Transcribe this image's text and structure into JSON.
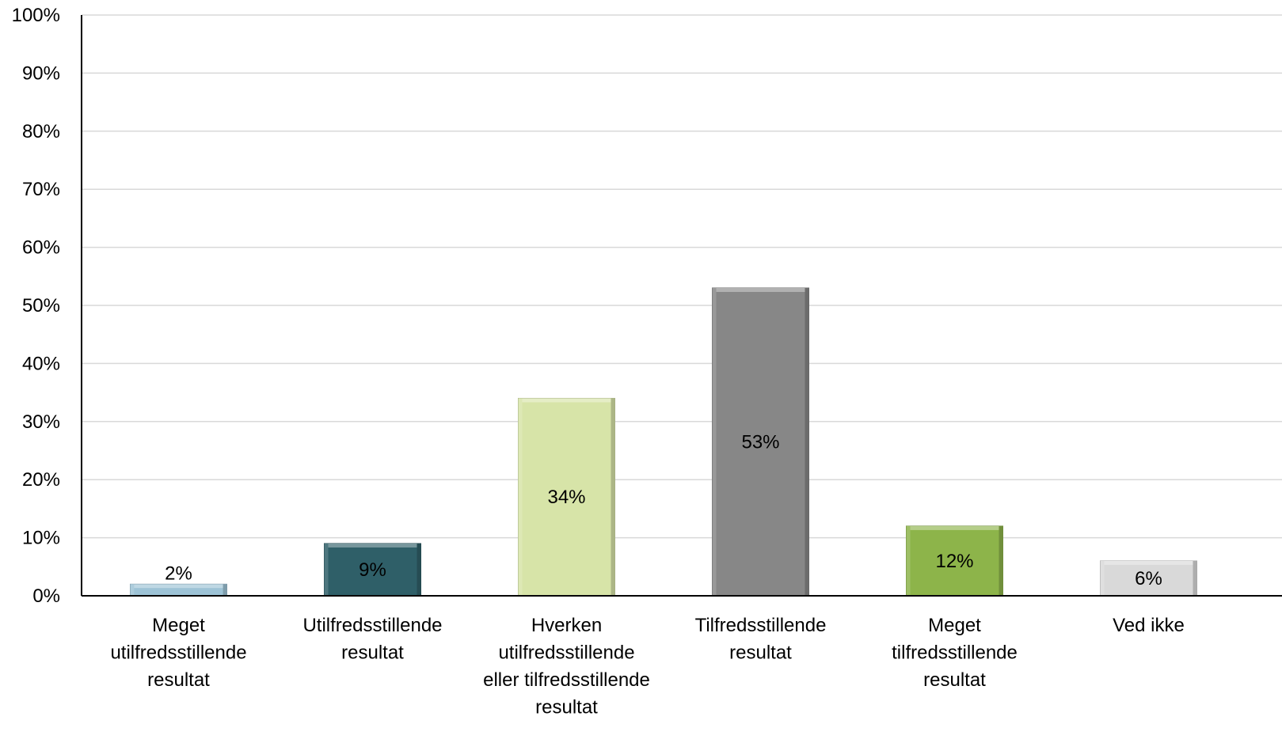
{
  "chart_data": {
    "type": "bar",
    "categories": [
      [
        "Meget",
        "utilfredsstillende",
        "resultat"
      ],
      [
        "Utilfredsstillende",
        "resultat"
      ],
      [
        "Hverken",
        "utilfredsstillende",
        "eller tilfredsstillende",
        "resultat"
      ],
      [
        "Tilfredsstillende",
        "resultat"
      ],
      [
        "Meget",
        "tilfredsstillende",
        "resultat"
      ],
      [
        "Ved ikke"
      ]
    ],
    "values": [
      2,
      9,
      34,
      53,
      12,
      6
    ],
    "data_labels": [
      "2%",
      "9%",
      "34%",
      "53%",
      "12%",
      "6%"
    ],
    "bar_colors": [
      "#9dc3d6",
      "#2f5f68",
      "#d7e4a8",
      "#878787",
      "#8db44a",
      "#d9d9d9"
    ],
    "ylim": [
      0,
      100
    ],
    "yticks": [
      0,
      10,
      20,
      30,
      40,
      50,
      60,
      70,
      80,
      90,
      100
    ],
    "ytick_labels": [
      "0%",
      "10%",
      "20%",
      "30%",
      "40%",
      "50%",
      "60%",
      "70%",
      "80%",
      "90%",
      "100%"
    ],
    "grid": true,
    "legend": "none"
  }
}
